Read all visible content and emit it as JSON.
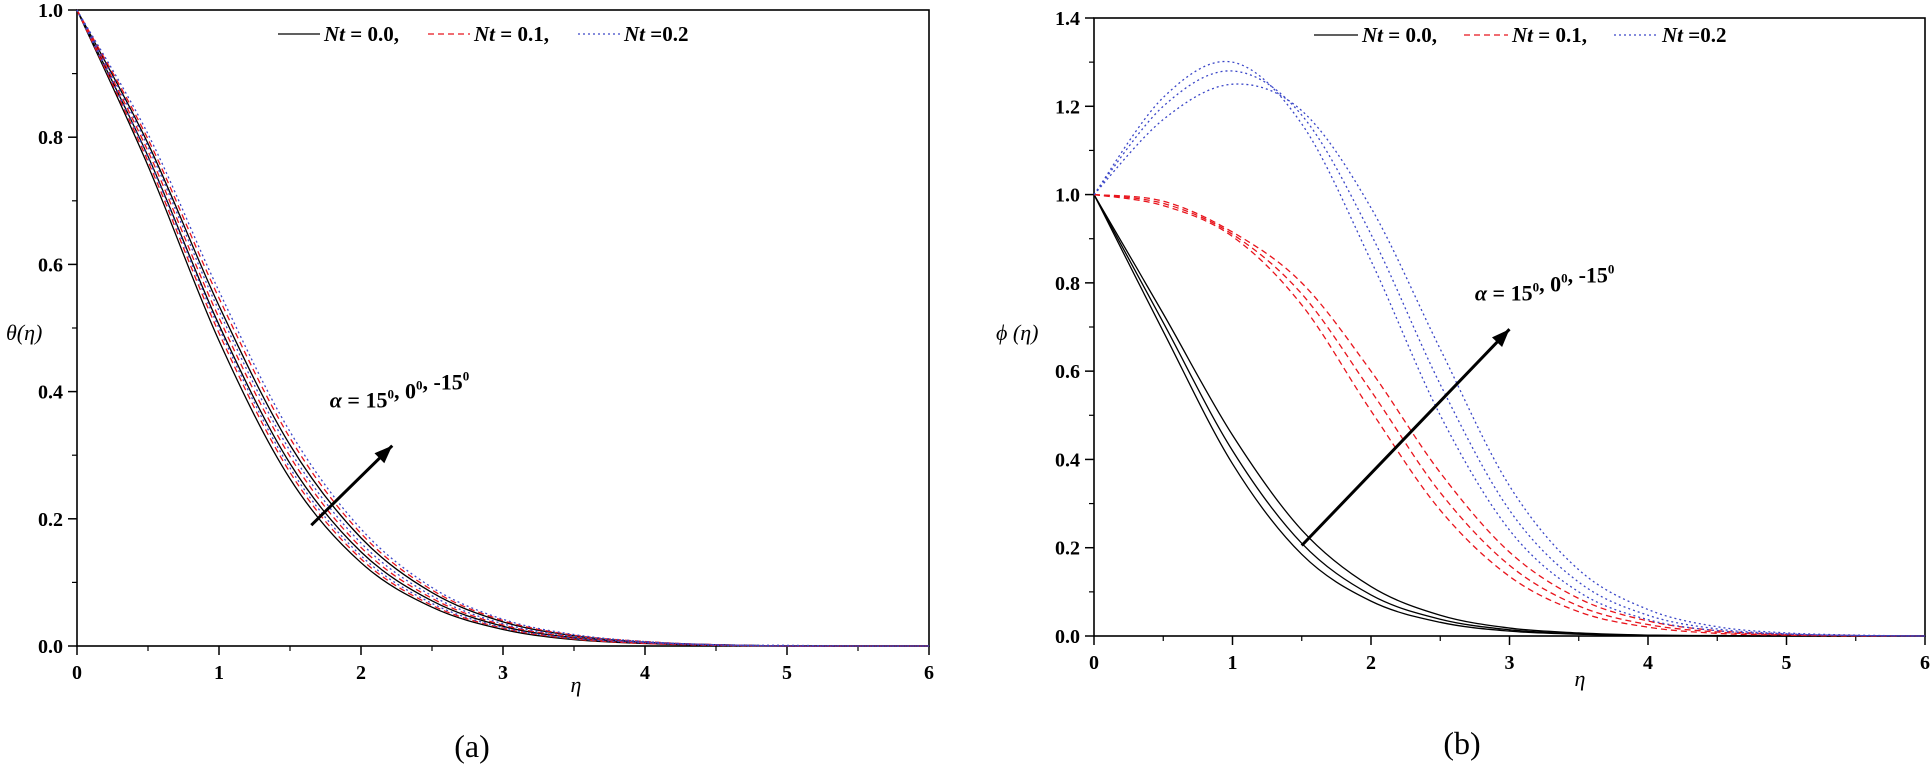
{
  "chart_data": [
    {
      "type": "line",
      "panel_label": "(a)",
      "title": "",
      "xlabel": "η",
      "ylabel": "θ(η)",
      "xlim": [
        0,
        6
      ],
      "ylim": [
        0,
        1.0
      ],
      "xticks": [
        0,
        1,
        2,
        3,
        4,
        5,
        6
      ],
      "yticks": [
        0.0,
        0.2,
        0.4,
        0.6,
        0.8,
        1.0
      ],
      "xtick_labels": [
        "0",
        "1",
        "2",
        "3",
        "4",
        "5",
        "6"
      ],
      "ytick_labels": [
        "0.0",
        "0.2",
        "0.4",
        "0.6",
        "0.8",
        "1.0"
      ],
      "grid": false,
      "legend_position": "top",
      "legend": [
        {
          "symbol": "Nt",
          "text": " = 0.0,",
          "style": "solid",
          "color": "#000000"
        },
        {
          "symbol": "Nt",
          "text": " = 0.1,",
          "style": "dashed",
          "color": "#e8141c"
        },
        {
          "symbol": "Nt",
          "text": " =0.2",
          "style": "dotted",
          "color": "#3a46c8"
        }
      ],
      "annotation": {
        "symbol": "α",
        "text": " = 15",
        "sup1": "0",
        "mid": ", 0",
        "sup2": "0",
        "end": ", -15",
        "sup3": "0",
        "arrow_from": [
          1.65,
          0.19
        ],
        "arrow_to": [
          2.22,
          0.315
        ],
        "label_at": [
          1.78,
          0.375
        ]
      },
      "series": [
        {
          "name": "Nt = 0.0, α = 15°",
          "style": "solid",
          "color": "#000000",
          "x": [
            0,
            0.5,
            1,
            1.5,
            2,
            2.5,
            3,
            3.5,
            4,
            4.5,
            5,
            5.5,
            6
          ],
          "y": [
            1.0,
            0.755,
            0.48,
            0.263,
            0.131,
            0.061,
            0.026,
            0.01,
            0.004,
            0.001,
            0.0,
            0.0,
            0.0
          ]
        },
        {
          "name": "Nt = 0.0, α = 0°",
          "style": "solid",
          "color": "#000000",
          "x": [
            0,
            0.5,
            1,
            1.5,
            2,
            2.5,
            3,
            3.5,
            4,
            4.5,
            5,
            5.5,
            6
          ],
          "y": [
            1.0,
            0.77,
            0.505,
            0.287,
            0.148,
            0.071,
            0.031,
            0.013,
            0.005,
            0.002,
            0.0,
            0.0,
            0.0
          ]
        },
        {
          "name": "Nt = 0.0, α = -15°",
          "style": "solid",
          "color": "#000000",
          "x": [
            0,
            0.5,
            1,
            1.5,
            2,
            2.5,
            3,
            3.5,
            4,
            4.5,
            5,
            5.5,
            6
          ],
          "y": [
            1.0,
            0.79,
            0.535,
            0.316,
            0.17,
            0.084,
            0.038,
            0.016,
            0.006,
            0.002,
            0.0,
            0.0,
            0.0
          ]
        },
        {
          "name": "Nt = 0.1, α = 15°",
          "style": "dashed",
          "color": "#e8141c",
          "x": [
            0,
            0.5,
            1,
            1.5,
            2,
            2.5,
            3,
            3.5,
            4,
            4.5,
            5,
            5.5,
            6
          ],
          "y": [
            1.0,
            0.762,
            0.492,
            0.273,
            0.137,
            0.064,
            0.028,
            0.011,
            0.004,
            0.001,
            0.0,
            0.0,
            0.0
          ]
        },
        {
          "name": "Nt = 0.1, α = 0°",
          "style": "dashed",
          "color": "#e8141c",
          "x": [
            0,
            0.5,
            1,
            1.5,
            2,
            2.5,
            3,
            3.5,
            4,
            4.5,
            5,
            5.5,
            6
          ],
          "y": [
            1.0,
            0.778,
            0.516,
            0.298,
            0.155,
            0.075,
            0.033,
            0.014,
            0.005,
            0.002,
            0.0,
            0.0,
            0.0
          ]
        },
        {
          "name": "Nt = 0.1, α = -15°",
          "style": "dashed",
          "color": "#e8141c",
          "x": [
            0,
            0.5,
            1,
            1.5,
            2,
            2.5,
            3,
            3.5,
            4,
            4.5,
            5,
            5.5,
            6
          ],
          "y": [
            1.0,
            0.797,
            0.547,
            0.327,
            0.177,
            0.088,
            0.04,
            0.017,
            0.007,
            0.002,
            0.0,
            0.0,
            0.0
          ]
        },
        {
          "name": "Nt = 0.2, α = 15°",
          "style": "dotted",
          "color": "#3a46c8",
          "x": [
            0,
            0.5,
            1,
            1.5,
            2,
            2.5,
            3,
            3.5,
            4,
            4.5,
            5,
            5.5,
            6
          ],
          "y": [
            1.0,
            0.768,
            0.5,
            0.28,
            0.142,
            0.067,
            0.029,
            0.012,
            0.005,
            0.001,
            0.0,
            0.0,
            0.0
          ]
        },
        {
          "name": "Nt = 0.2, α = 0°",
          "style": "dotted",
          "color": "#3a46c8",
          "x": [
            0,
            0.5,
            1,
            1.5,
            2,
            2.5,
            3,
            3.5,
            4,
            4.5,
            5,
            5.5,
            6
          ],
          "y": [
            1.0,
            0.785,
            0.527,
            0.307,
            0.162,
            0.079,
            0.035,
            0.015,
            0.006,
            0.002,
            0.0,
            0.0,
            0.0
          ]
        },
        {
          "name": "Nt = 0.2, α = -15°",
          "style": "dotted",
          "color": "#3a46c8",
          "x": [
            0,
            0.5,
            1,
            1.5,
            2,
            2.5,
            3,
            3.5,
            4,
            4.5,
            5,
            5.5,
            6
          ],
          "y": [
            1.0,
            0.805,
            0.558,
            0.337,
            0.184,
            0.092,
            0.042,
            0.018,
            0.007,
            0.002,
            0.001,
            0.0,
            0.0
          ]
        }
      ]
    },
    {
      "type": "line",
      "panel_label": "(b)",
      "title": "",
      "xlabel": "η",
      "ylabel": "ϕ (η)",
      "xlim": [
        0,
        6
      ],
      "ylim": [
        0,
        1.4
      ],
      "xticks": [
        0,
        1,
        2,
        3,
        4,
        5,
        6
      ],
      "yticks": [
        0.0,
        0.2,
        0.4,
        0.6,
        0.8,
        1.0,
        1.2,
        1.4
      ],
      "xtick_labels": [
        "0",
        "1",
        "2",
        "3",
        "4",
        "5",
        "6"
      ],
      "ytick_labels": [
        "0.0",
        "0.2",
        "0.4",
        "0.6",
        "0.8",
        "1.0",
        "1.2",
        "1.4"
      ],
      "grid": false,
      "legend_position": "top",
      "legend": [
        {
          "symbol": "Nt",
          "text": " = 0.0,",
          "style": "solid",
          "color": "#000000"
        },
        {
          "symbol": "Nt",
          "text": " = 0.1,",
          "style": "dashed",
          "color": "#e8141c"
        },
        {
          "symbol": "Nt",
          "text": " =0.2",
          "style": "dotted",
          "color": "#3a46c8"
        }
      ],
      "annotation": {
        "symbol": "α",
        "text": " = 15",
        "sup1": "0",
        "mid": ", 0",
        "sup2": "0",
        "end": ", -15",
        "sup3": "0",
        "arrow_from": [
          1.5,
          0.205
        ],
        "arrow_to": [
          3.0,
          0.695
        ],
        "label_at": [
          2.75,
          0.76
        ]
      },
      "series": [
        {
          "name": "Nt = 0.0, α = 15°",
          "style": "solid",
          "color": "#000000",
          "x": [
            0,
            0.5,
            1,
            1.5,
            2,
            2.5,
            3,
            3.5,
            4,
            4.5,
            5,
            5.5,
            6
          ],
          "y": [
            1.0,
            0.69,
            0.39,
            0.185,
            0.079,
            0.031,
            0.011,
            0.004,
            0.001,
            0.0,
            0.0,
            0.0,
            0.0
          ]
        },
        {
          "name": "Nt = 0.0, α = 0°",
          "style": "solid",
          "color": "#000000",
          "x": [
            0,
            0.5,
            1,
            1.5,
            2,
            2.5,
            3,
            3.5,
            4,
            4.5,
            5,
            5.5,
            6
          ],
          "y": [
            1.0,
            0.71,
            0.42,
            0.21,
            0.093,
            0.038,
            0.014,
            0.005,
            0.002,
            0.0,
            0.0,
            0.0,
            0.0
          ]
        },
        {
          "name": "Nt = 0.0, α = -15°",
          "style": "solid",
          "color": "#000000",
          "x": [
            0,
            0.5,
            1,
            1.5,
            2,
            2.5,
            3,
            3.5,
            4,
            4.5,
            5,
            5.5,
            6
          ],
          "y": [
            1.0,
            0.73,
            0.455,
            0.24,
            0.112,
            0.047,
            0.018,
            0.007,
            0.002,
            0.001,
            0.0,
            0.0,
            0.0
          ]
        },
        {
          "name": "Nt = 0.1, α = 15°",
          "style": "dashed",
          "color": "#e8141c",
          "x": [
            0,
            0.5,
            1,
            1.5,
            2,
            2.5,
            3,
            3.5,
            4,
            4.5,
            5,
            5.5,
            6
          ],
          "y": [
            1.0,
            0.975,
            0.905,
            0.75,
            0.51,
            0.285,
            0.135,
            0.055,
            0.02,
            0.006,
            0.002,
            0.0,
            0.0
          ]
        },
        {
          "name": "Nt = 0.1, α = 0°",
          "style": "dashed",
          "color": "#e8141c",
          "x": [
            0,
            0.5,
            1,
            1.5,
            2,
            2.5,
            3,
            3.5,
            4,
            4.5,
            5,
            5.5,
            6
          ],
          "y": [
            1.0,
            0.98,
            0.91,
            0.775,
            0.555,
            0.325,
            0.16,
            0.068,
            0.026,
            0.009,
            0.003,
            0.001,
            0.0
          ]
        },
        {
          "name": "Nt = 0.1, α = -15°",
          "style": "dashed",
          "color": "#e8141c",
          "x": [
            0,
            0.5,
            1,
            1.5,
            2,
            2.5,
            3,
            3.5,
            4,
            4.5,
            5,
            5.5,
            6
          ],
          "y": [
            1.0,
            0.985,
            0.915,
            0.8,
            0.6,
            0.37,
            0.19,
            0.085,
            0.034,
            0.012,
            0.004,
            0.001,
            0.0
          ]
        },
        {
          "name": "Nt = 0.2, α = 15°",
          "style": "dotted",
          "color": "#3a46c8",
          "x": [
            0,
            0.5,
            1,
            1.5,
            2,
            2.5,
            3,
            3.5,
            4,
            4.5,
            5,
            5.5,
            6
          ],
          "y": [
            1.0,
            1.22,
            1.3,
            1.16,
            0.85,
            0.5,
            0.24,
            0.1,
            0.037,
            0.012,
            0.004,
            0.001,
            0.0
          ]
        },
        {
          "name": "Nt = 0.2, α = 0°",
          "style": "dotted",
          "color": "#3a46c8",
          "x": [
            0,
            0.5,
            1,
            1.5,
            2,
            2.5,
            3,
            3.5,
            4,
            4.5,
            5,
            5.5,
            6
          ],
          "y": [
            1.0,
            1.2,
            1.28,
            1.18,
            0.91,
            0.57,
            0.285,
            0.122,
            0.047,
            0.016,
            0.005,
            0.001,
            0.0
          ]
        },
        {
          "name": "Nt = 0.2, α = -15°",
          "style": "dotted",
          "color": "#3a46c8",
          "x": [
            0,
            0.5,
            1,
            1.5,
            2,
            2.5,
            3,
            3.5,
            4,
            4.5,
            5,
            5.5,
            6
          ],
          "y": [
            1.0,
            1.17,
            1.25,
            1.19,
            0.97,
            0.65,
            0.34,
            0.15,
            0.06,
            0.021,
            0.007,
            0.002,
            0.0
          ]
        }
      ]
    }
  ]
}
